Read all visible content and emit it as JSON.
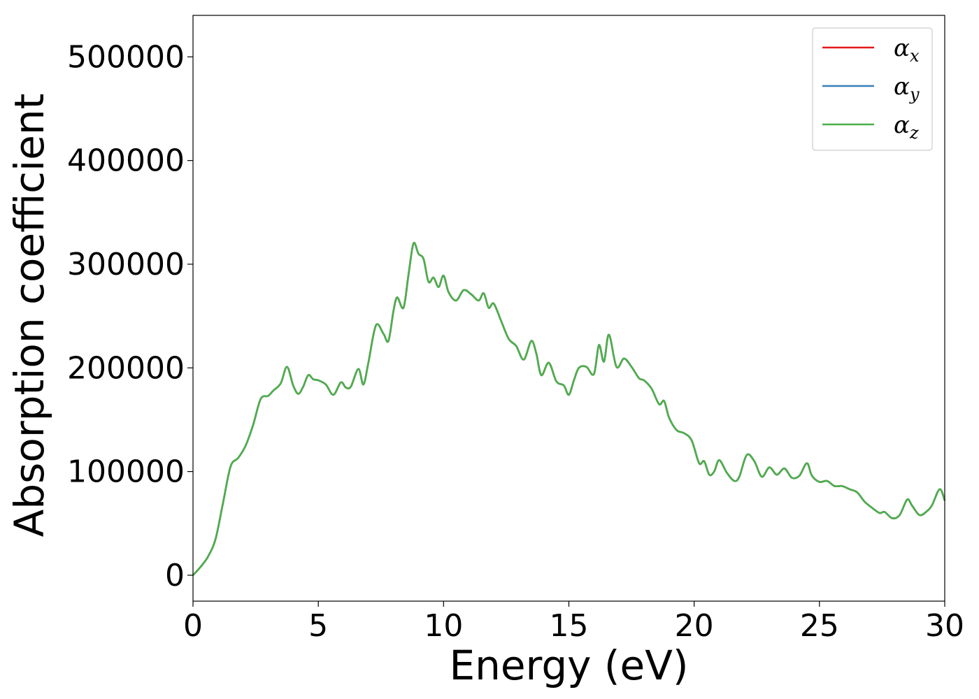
{
  "chart_data": {
    "type": "line",
    "title": "",
    "xlabel": "Energy (eV)",
    "ylabel": "Absorption coefficient",
    "xlim": [
      0,
      30
    ],
    "ylim": [
      -25000,
      540000
    ],
    "xticks": [
      0,
      5,
      10,
      15,
      20,
      25,
      30
    ],
    "yticks": [
      0,
      100000,
      200000,
      300000,
      400000,
      500000
    ],
    "xtick_labels": [
      "0",
      "5",
      "10",
      "15",
      "20",
      "25",
      "30"
    ],
    "ytick_labels": [
      "0",
      "100000",
      "200000",
      "300000",
      "400000",
      "500000"
    ],
    "grid": false,
    "legend_position": "top-right",
    "series": [
      {
        "name": "αx",
        "symbol": "α",
        "subscript": "x",
        "color": "#e41a1c"
      },
      {
        "name": "αy",
        "symbol": "α",
        "subscript": "y",
        "color": "#377eb8"
      },
      {
        "name": "αz",
        "symbol": "α",
        "subscript": "z",
        "color": "#4daf4a"
      }
    ],
    "shared_curve": {
      "x": [
        0,
        0.3,
        0.6,
        0.9,
        1.2,
        1.5,
        1.8,
        2.1,
        2.4,
        2.7,
        3.0,
        3.2,
        3.5,
        3.75,
        4.0,
        4.2,
        4.4,
        4.6,
        4.8,
        5.0,
        5.3,
        5.6,
        5.9,
        6.1,
        6.3,
        6.6,
        6.8,
        7.0,
        7.3,
        7.6,
        7.8,
        8.0,
        8.15,
        8.4,
        8.6,
        8.8,
        9.0,
        9.2,
        9.4,
        9.6,
        9.8,
        10.0,
        10.2,
        10.5,
        10.8,
        11.1,
        11.4,
        11.6,
        11.8,
        12.0,
        12.3,
        12.6,
        12.9,
        13.2,
        13.5,
        13.7,
        13.9,
        14.2,
        14.5,
        14.8,
        15.0,
        15.2,
        15.4,
        15.7,
        16.0,
        16.2,
        16.4,
        16.6,
        16.9,
        17.2,
        17.5,
        17.8,
        18.0,
        18.3,
        18.6,
        18.8,
        19.0,
        19.3,
        19.6,
        19.9,
        20.2,
        20.4,
        20.6,
        20.8,
        21.0,
        21.3,
        21.6,
        21.8,
        22.1,
        22.4,
        22.7,
        23.0,
        23.3,
        23.6,
        23.9,
        24.2,
        24.5,
        24.7,
        25.0,
        25.3,
        25.6,
        25.9,
        26.2,
        26.5,
        26.8,
        27.1,
        27.4,
        27.6,
        27.9,
        28.2,
        28.5,
        28.7,
        29.0,
        29.3,
        29.5,
        29.8,
        30.0
      ],
      "y": [
        0,
        8000,
        18000,
        35000,
        70000,
        105000,
        113000,
        125000,
        145000,
        170000,
        173000,
        178000,
        185000,
        201000,
        183000,
        175000,
        182000,
        193000,
        189000,
        188000,
        184000,
        174000,
        186000,
        181000,
        182000,
        199000,
        184000,
        205000,
        241000,
        233000,
        226000,
        255000,
        268000,
        258000,
        290000,
        320000,
        310000,
        305000,
        283000,
        287000,
        278000,
        289000,
        273000,
        265000,
        275000,
        271000,
        265000,
        272000,
        258000,
        262000,
        245000,
        228000,
        221000,
        208000,
        226000,
        214000,
        193000,
        205000,
        187000,
        183000,
        174000,
        188000,
        200000,
        201000,
        194000,
        222000,
        206000,
        232000,
        201000,
        209000,
        201000,
        190000,
        188000,
        180000,
        165000,
        168000,
        152000,
        140000,
        137000,
        130000,
        108000,
        110000,
        97000,
        100000,
        111000,
        99000,
        91000,
        95000,
        116000,
        110000,
        95000,
        104000,
        97000,
        103000,
        94000,
        96000,
        108000,
        96000,
        90000,
        91000,
        86000,
        86000,
        83000,
        80000,
        71000,
        65000,
        60000,
        61000,
        55000,
        58000,
        73000,
        67000,
        58000,
        62000,
        68000,
        83000,
        72000
      ]
    }
  }
}
